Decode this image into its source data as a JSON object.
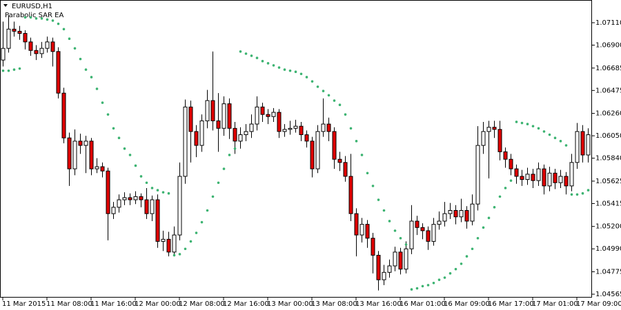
{
  "chart_data": {
    "type": "candlestick",
    "title": "EURUSD,H1",
    "subtitle": "Parabolic SAR EA",
    "categories": [
      "11 Mar 2015",
      null,
      null,
      null,
      null,
      null,
      null,
      null,
      "11 Mar 08:00",
      null,
      null,
      null,
      null,
      null,
      null,
      null,
      "11 Mar 16:00",
      null,
      null,
      null,
      null,
      null,
      null,
      null,
      "12 Mar 00:00",
      null,
      null,
      null,
      null,
      null,
      null,
      null,
      "12 Mar 08:00",
      null,
      null,
      null,
      null,
      null,
      null,
      null,
      "12 Mar 16:00",
      null,
      null,
      null,
      null,
      null,
      null,
      null,
      "13 Mar 00:00",
      null,
      null,
      null,
      null,
      null,
      null,
      null,
      "13 Mar 08:00",
      null,
      null,
      null,
      null,
      null,
      null,
      null,
      "13 Mar 16:00",
      null,
      null,
      null,
      null,
      null,
      null,
      null,
      "16 Mar 01:00",
      null,
      null,
      null,
      null,
      null,
      null,
      null,
      "16 Mar 09:00",
      null,
      null,
      null,
      null,
      null,
      null,
      null,
      "16 Mar 17:00",
      null,
      null,
      null,
      null,
      null,
      null,
      null,
      "17 Mar 01:00",
      null,
      null,
      null,
      null,
      null,
      null,
      null,
      "17 Mar 09:00",
      null,
      null
    ],
    "open": [
      1.0676,
      1.0687,
      1.0705,
      1.0703,
      1.0701,
      1.0693,
      1.0685,
      1.0682,
      1.0687,
      1.0693,
      1.0684,
      1.0645,
      1.0603,
      1.0574,
      1.06,
      1.0596,
      1.06,
      1.0574,
      1.0576,
      1.0572,
      1.0532,
      1.0538,
      1.0545,
      1.0547,
      1.0545,
      1.0548,
      1.0545,
      1.0532,
      1.0545,
      1.0506,
      1.0508,
      1.0496,
      1.0512,
      1.0567,
      1.0632,
      1.0609,
      1.0596,
      1.0619,
      1.0638,
      1.0619,
      1.0612,
      1.0635,
      1.0612,
      1.06,
      1.0606,
      1.0609,
      1.0616,
      1.0632,
      1.0625,
      1.0623,
      1.0627,
      1.0609,
      1.0611,
      1.0612,
      1.0614,
      1.0606,
      1.06,
      1.0574,
      1.0609,
      1.0616,
      1.0609,
      1.0583,
      1.058,
      1.0567,
      1.0532,
      1.0512,
      1.0522,
      1.0509,
      1.0493,
      1.047,
      1.0477,
      1.0483,
      1.0496,
      1.048,
      1.0499,
      1.0525,
      1.0519,
      1.0516,
      1.0506,
      1.0522,
      1.0525,
      1.0532,
      1.0535,
      1.0529,
      1.0535,
      1.0525,
      1.0541,
      1.0596,
      1.0609,
      1.0613,
      1.0611,
      1.059,
      1.0583,
      1.0574,
      1.0567,
      1.0564,
      1.0569,
      1.0563,
      1.0574,
      1.0558,
      1.057,
      1.0561,
      1.0567,
      1.0558,
      1.058,
      1.0609,
      1.0587
    ],
    "high": [
      1.0712,
      1.0718,
      1.0712,
      1.0708,
      1.0704,
      1.0697,
      1.069,
      1.0693,
      1.0698,
      1.0697,
      1.0688,
      1.065,
      1.0608,
      1.0611,
      1.0607,
      1.0605,
      1.0603,
      1.0584,
      1.058,
      1.0575,
      1.0543,
      1.055,
      1.0552,
      1.0551,
      1.0553,
      1.0551,
      1.0556,
      1.0549,
      1.055,
      1.0516,
      1.0515,
      1.052,
      1.058,
      1.0639,
      1.0638,
      1.0615,
      1.0625,
      1.0648,
      1.0684,
      1.0645,
      1.0642,
      1.064,
      1.0618,
      1.0613,
      1.0616,
      1.0625,
      1.0642,
      1.0636,
      1.063,
      1.0631,
      1.063,
      1.0616,
      1.0619,
      1.062,
      1.0618,
      1.061,
      1.0604,
      1.0615,
      1.064,
      1.0622,
      1.0613,
      1.059,
      1.0586,
      1.0588,
      1.0537,
      1.0528,
      1.0526,
      1.0514,
      1.0497,
      1.0484,
      1.0489,
      1.0501,
      1.05,
      1.0506,
      1.054,
      1.053,
      1.0523,
      1.052,
      1.0528,
      1.0534,
      1.0543,
      1.0542,
      1.054,
      1.0546,
      1.0539,
      1.055,
      1.0614,
      1.0618,
      1.0619,
      1.0619,
      1.0619,
      1.0594,
      1.0588,
      1.0578,
      1.0573,
      1.0575,
      1.0574,
      1.058,
      1.0578,
      1.0576,
      1.0574,
      1.0573,
      1.0571,
      1.0588,
      1.0617,
      1.0615,
      1.0612
    ],
    "low": [
      1.067,
      1.0683,
      1.0698,
      1.0695,
      1.0686,
      1.068,
      1.0676,
      1.0678,
      1.0683,
      1.067,
      1.064,
      1.0598,
      1.0558,
      1.0568,
      1.0588,
      1.057,
      1.0568,
      1.057,
      1.0566,
      1.0507,
      1.0527,
      1.0533,
      1.054,
      1.054,
      1.0541,
      1.0538,
      1.0527,
      1.0525,
      1.05,
      1.0497,
      1.0492,
      1.0494,
      1.0507,
      1.056,
      1.058,
      1.0585,
      1.059,
      1.0612,
      1.061,
      1.059,
      1.0605,
      1.0602,
      1.0588,
      1.0593,
      1.06,
      1.0603,
      1.061,
      1.0618,
      1.0616,
      1.0618,
      1.0603,
      1.0604,
      1.0606,
      1.0608,
      1.06,
      1.0594,
      1.0566,
      1.057,
      1.0604,
      1.06,
      1.0574,
      1.0572,
      1.0562,
      1.0525,
      1.0492,
      1.0505,
      1.05,
      1.0476,
      1.046,
      1.0465,
      1.0472,
      1.0478,
      1.0475,
      1.0476,
      1.0494,
      1.0512,
      1.0508,
      1.0498,
      1.0502,
      1.0517,
      1.052,
      1.0527,
      1.0522,
      1.0524,
      1.0518,
      1.0521,
      1.0535,
      1.0588,
      1.0565,
      1.0603,
      1.0582,
      1.0575,
      1.0568,
      1.056,
      1.0558,
      1.0559,
      1.0556,
      1.0558,
      1.055,
      1.0553,
      1.0555,
      1.0556,
      1.055,
      1.0553,
      1.0574,
      1.058,
      1.058
    ],
    "close": [
      1.0687,
      1.0705,
      1.0703,
      1.0701,
      1.0693,
      1.0685,
      1.0682,
      1.0687,
      1.0693,
      1.0684,
      1.0645,
      1.0603,
      1.0574,
      1.06,
      1.0596,
      1.06,
      1.0574,
      1.0576,
      1.0572,
      1.0532,
      1.0538,
      1.0545,
      1.0547,
      1.0545,
      1.0548,
      1.0545,
      1.0532,
      1.0545,
      1.0506,
      1.0508,
      1.0496,
      1.0512,
      1.0567,
      1.0632,
      1.0609,
      1.0596,
      1.0619,
      1.0638,
      1.0619,
      1.0612,
      1.0635,
      1.0612,
      1.06,
      1.0606,
      1.0609,
      1.0616,
      1.0632,
      1.0625,
      1.0623,
      1.0627,
      1.0609,
      1.0611,
      1.0612,
      1.0614,
      1.0606,
      1.06,
      1.0574,
      1.0609,
      1.0616,
      1.0609,
      1.0583,
      1.058,
      1.0567,
      1.0532,
      1.0512,
      1.0522,
      1.0509,
      1.0493,
      1.047,
      1.0477,
      1.0483,
      1.0496,
      1.048,
      1.0499,
      1.0525,
      1.0519,
      1.0516,
      1.0506,
      1.0522,
      1.0525,
      1.0532,
      1.0535,
      1.0529,
      1.0535,
      1.0525,
      1.0541,
      1.0596,
      1.0609,
      1.0613,
      1.0611,
      1.059,
      1.0583,
      1.0574,
      1.0567,
      1.0564,
      1.0569,
      1.0563,
      1.0574,
      1.0558,
      1.057,
      1.0561,
      1.0567,
      1.0558,
      1.058,
      1.0609,
      1.0587,
      1.0606
    ],
    "up_color": "#ffffff",
    "down_color": "#e00000",
    "outline_color": "#000000",
    "sar": {
      "color": "#3cb371",
      "values": [
        1.0666,
        1.0666,
        1.0667,
        1.0668,
        1.0716,
        1.0716,
        1.0715,
        1.0715,
        1.0714,
        1.0713,
        1.071,
        1.0705,
        1.0696,
        1.0687,
        1.0677,
        1.0667,
        1.066,
        1.0649,
        1.0636,
        1.0625,
        1.0612,
        1.0603,
        1.0593,
        1.0587,
        1.0577,
        1.0567,
        1.0561,
        1.0556,
        1.0554,
        1.0552,
        1.0551,
        1.0493,
        1.0494,
        1.0499,
        1.0506,
        1.0514,
        1.0524,
        1.0535,
        1.0548,
        1.0561,
        1.0574,
        1.0587,
        1.0593,
        1.0684,
        1.0682,
        1.068,
        1.0678,
        1.0675,
        1.0673,
        1.0671,
        1.0669,
        1.0667,
        1.0666,
        1.0665,
        1.0663,
        1.066,
        1.0656,
        1.0651,
        1.0647,
        1.0643,
        1.0638,
        1.0634,
        1.0625,
        1.0612,
        1.06,
        1.0587,
        1.057,
        1.0558,
        1.0545,
        1.0535,
        1.0525,
        1.0516,
        1.0509,
        1.0503,
        1.0461,
        1.0462,
        1.0464,
        1.0465,
        1.0467,
        1.047,
        1.0472,
        1.0476,
        1.048,
        1.0485,
        1.0492,
        1.0499,
        1.0509,
        1.0519,
        1.0528,
        1.0538,
        1.0548,
        1.0556,
        1.0563,
        1.0618,
        1.0617,
        1.0616,
        1.0614,
        1.0612,
        1.0609,
        1.0606,
        1.0603,
        1.06,
        1.0596,
        1.055,
        1.055,
        1.0551,
        1.0554
      ]
    },
    "ylim": [
      1.04533,
      1.07323
    ],
    "yticks": [
      {
        "value": 1.0711,
        "label": "1.07110"
      },
      {
        "value": 1.069,
        "label": "1.06900"
      },
      1.06685,
      1.06475,
      {
        "value": 1.0626,
        "label": "1.06260"
      },
      {
        "value": 1.0605,
        "label": "1.06050"
      },
      {
        "value": 1.0584,
        "label": "1.05840"
      },
      1.05625,
      1.05415,
      {
        "value": 1.052,
        "label": "1.05200"
      },
      {
        "value": 1.0499,
        "label": "1.04990"
      },
      1.04775,
      1.04565
    ]
  }
}
